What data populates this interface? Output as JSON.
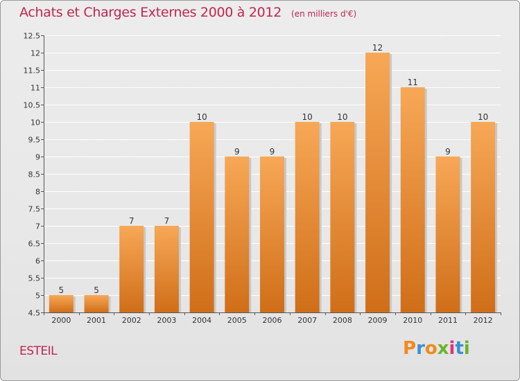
{
  "header": {
    "title": "Achats et Charges Externes 2000 à 2012",
    "unit": "(en milliers d'€)"
  },
  "footer": {
    "commune": "ESTEIL",
    "logo_text": "Proxiti"
  },
  "colors": {
    "title": "#c0254f",
    "bar_top": "#f7a856",
    "bar_bottom": "#d06e18",
    "logo_letters": [
      "#f08a1c",
      "#3b8fd8",
      "#f08a1c",
      "#6ab42d",
      "#e0337a",
      "#3b8fd8",
      "#6ab42d"
    ]
  },
  "chart_data": {
    "type": "bar",
    "title": "Achats et Charges Externes 2000 à 2012",
    "subtitle": "(en milliers d'€)",
    "categories": [
      "2000",
      "2001",
      "2002",
      "2003",
      "2004",
      "2005",
      "2006",
      "2007",
      "2008",
      "2009",
      "2010",
      "2011",
      "2012"
    ],
    "values": [
      5,
      5,
      7,
      7,
      10,
      9,
      9,
      10,
      10,
      12,
      11,
      9,
      10
    ],
    "data_labels": [
      "5",
      "5",
      "7",
      "7",
      "10",
      "9",
      "9",
      "10",
      "10",
      "12",
      "11",
      "9",
      "10"
    ],
    "ylim": [
      4.5,
      12.5
    ],
    "yticks": [
      4.5,
      5,
      5.5,
      6,
      6.5,
      7,
      7.5,
      8,
      8.5,
      9,
      9.5,
      10,
      10.5,
      11,
      11.5,
      12,
      12.5
    ],
    "ytick_labels": [
      "4.5",
      "5",
      "5.5",
      "6",
      "6.5",
      "7",
      "7.5",
      "8",
      "8.5",
      "9",
      "9.5",
      "10",
      "10.5",
      "11",
      "11.5",
      "12",
      "12.5"
    ],
    "grid": true,
    "legend": "none"
  }
}
